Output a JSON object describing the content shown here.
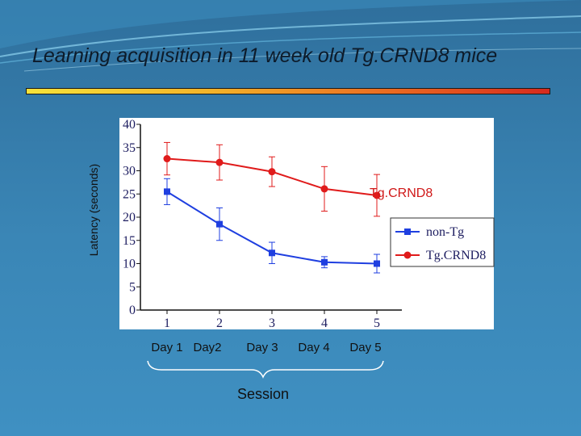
{
  "title": "Learning acquisition in 11 week old Tg.CRND8 mice",
  "chart_data": {
    "type": "line",
    "title": "",
    "ylabel": "Latency (seconds)",
    "xlabel": "Session",
    "x": [
      1,
      2,
      3,
      4,
      5
    ],
    "x_tick_labels": [
      "1",
      "2",
      "3",
      "4",
      "5"
    ],
    "ylim": [
      0,
      40
    ],
    "y_ticks": [
      0,
      5,
      10,
      15,
      20,
      25,
      30,
      35,
      40
    ],
    "y_tick_labels": [
      "0",
      "5",
      "10",
      "15",
      "20",
      "25",
      "30",
      "35",
      "40"
    ],
    "series": [
      {
        "name": "non-Tg",
        "color": "#1f3fe0",
        "marker": "square",
        "values": [
          25.5,
          18.5,
          12.3,
          10.3,
          10.0
        ],
        "error": [
          2.8,
          3.5,
          2.3,
          1.2,
          2.0
        ]
      },
      {
        "name": "Tg.CRND8",
        "color": "#e01b1b",
        "marker": "circle",
        "values": [
          32.6,
          31.8,
          29.8,
          26.1,
          24.7
        ],
        "error": [
          3.5,
          3.8,
          3.2,
          4.8,
          4.5
        ]
      }
    ],
    "legend": [
      "non-Tg",
      "Tg.CRND8"
    ],
    "legend_position": "right",
    "annotation": "Tg.CRND8",
    "session_labels": [
      "Day 1",
      "Day2",
      "Day 3",
      "Day 4",
      "Day 5"
    ]
  }
}
